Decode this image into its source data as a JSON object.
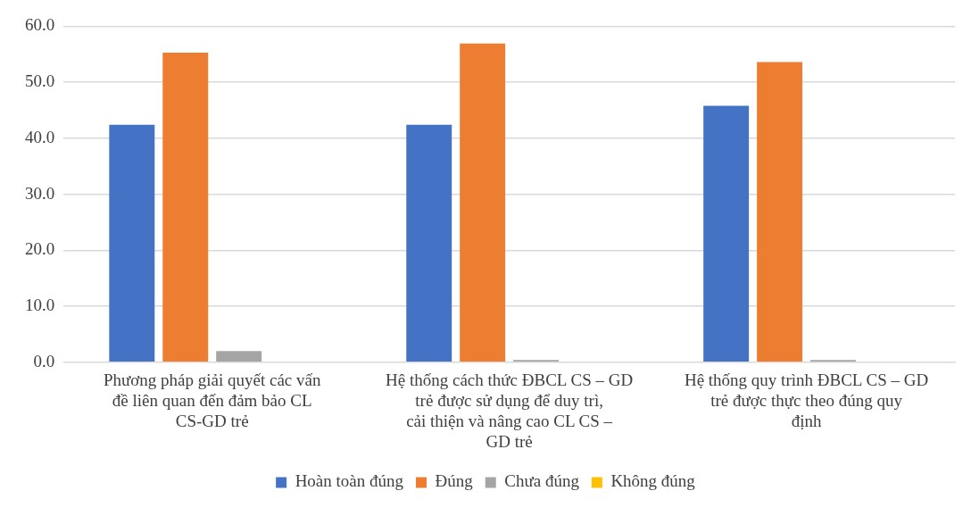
{
  "chart_data": {
    "type": "bar",
    "categories": [
      "Phương pháp giải quyết các vấn đề liên quan đến đảm bảo CL CS-GD trẻ",
      "Hệ thống cách thức ĐBCL CS – GD trẻ được sử dụng để duy trì, cải thiện và nâng cao CL CS – GD trẻ",
      "Hệ thống quy trình ĐBCL CS – GD trẻ được thực theo đúng quy định"
    ],
    "series": [
      {
        "name": "Hoàn toàn đúng",
        "color": "#4472c4",
        "values": [
          42.4,
          42.4,
          45.8
        ]
      },
      {
        "name": "Đúng",
        "color": "#ed7d31",
        "values": [
          55.3,
          56.9,
          53.6
        ]
      },
      {
        "name": "Chưa đúng",
        "color": "#a5a5a5",
        "values": [
          2.0,
          0.4,
          0.4
        ]
      },
      {
        "name": "Không đúng",
        "color": "#ffc000",
        "values": [
          0,
          0,
          0
        ]
      }
    ],
    "ylim": [
      0,
      60
    ],
    "yticks": [
      {
        "value": 0,
        "label": "0.0"
      },
      {
        "value": 10,
        "label": "10.0"
      },
      {
        "value": 20,
        "label": "20.0"
      },
      {
        "value": 30,
        "label": "30.0"
      },
      {
        "value": 40,
        "label": "40.0"
      },
      {
        "value": 50,
        "label": "50.0"
      },
      {
        "value": 60,
        "label": "60.0"
      }
    ],
    "grid": "y",
    "legend": "bottom"
  }
}
